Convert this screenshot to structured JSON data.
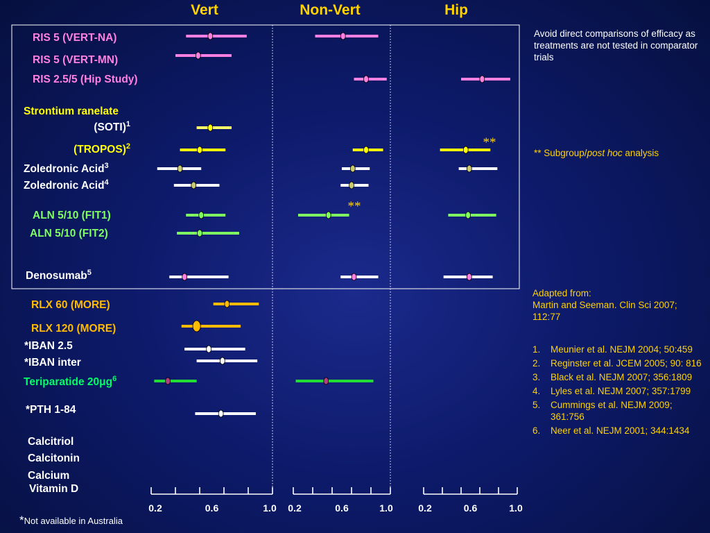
{
  "chart_data": {
    "type": "forest",
    "panels": [
      "Vert",
      "Non-Vert",
      "Hip"
    ],
    "x_ticks": [
      {
        "label": "0.2",
        "value": 0.2
      },
      {
        "label": "0.6",
        "value": 0.6
      },
      {
        "label": "1.0",
        "value": 1.0
      }
    ],
    "xlim": [
      0.2,
      1.0
    ],
    "rows": [
      {
        "label": "RIS 5 (VERT-NA)",
        "color": "#ff80e0",
        "bar": "#ff80e0",
        "dot": "#ff80e0",
        "values": [
          {
            "lo": 0.43,
            "pt": 0.59,
            "hi": 0.83
          },
          {
            "lo": 0.38,
            "pt": 0.61,
            "hi": 0.9
          },
          null
        ]
      },
      {
        "label": "RIS 5 (VERT-MN)",
        "color": "#ff80e0",
        "bar": "#ff80e0",
        "dot": "#ff80e0",
        "values": [
          {
            "lo": 0.36,
            "pt": 0.51,
            "hi": 0.73
          },
          null,
          null
        ]
      },
      {
        "label": "RIS 2.5/5 (Hip Study)",
        "color": "#ff80e0",
        "bar": "#ff80e0",
        "dot": "#ff80e0",
        "values": [
          null,
          {
            "lo": 0.7,
            "pt": 0.8,
            "hi": 0.97
          },
          {
            "lo": 0.52,
            "pt": 0.7,
            "hi": 0.94
          }
        ]
      },
      {
        "label": "Strontium ranelate",
        "color": "#ffff00",
        "header": true
      },
      {
        "label": "(SOTI)",
        "sup": "1",
        "color": "#ffffff",
        "bar": "#ffff66",
        "dot": "#ffff00",
        "values": [
          {
            "lo": 0.5,
            "pt": 0.59,
            "hi": 0.73
          },
          null,
          null
        ]
      },
      {
        "label": "(TROPOS)",
        "sup": "2",
        "color": "#ffff00",
        "bar": "#ffff00",
        "dot": "#ffff00",
        "values": [
          {
            "lo": 0.39,
            "pt": 0.52,
            "hi": 0.69
          },
          {
            "lo": 0.69,
            "pt": 0.8,
            "hi": 0.94
          },
          {
            "lo": 0.34,
            "pt": 0.56,
            "hi": 0.77
          }
        ],
        "note": "**"
      },
      {
        "label": "Zoledronic Acid",
        "sup": "3",
        "color": "#ffffff",
        "bar": "#ffffff",
        "dot": "#c8c870",
        "values": [
          {
            "lo": 0.24,
            "pt": 0.39,
            "hi": 0.53
          },
          {
            "lo": 0.6,
            "pt": 0.69,
            "hi": 0.83
          },
          {
            "lo": 0.5,
            "pt": 0.59,
            "hi": 0.83
          }
        ]
      },
      {
        "label": "Zoledronic Acid",
        "sup": "4",
        "color": "#ffffff",
        "bar": "#ffffff",
        "dot": "#c8c870",
        "values": [
          {
            "lo": 0.35,
            "pt": 0.48,
            "hi": 0.65
          },
          {
            "lo": 0.59,
            "pt": 0.68,
            "hi": 0.82
          },
          null
        ]
      },
      {
        "label": "ALN 5/10 (FIT1)",
        "color": "#80ff60",
        "bar": "#80ff60",
        "dot": "#80ff60",
        "values": [
          {
            "lo": 0.43,
            "pt": 0.53,
            "hi": 0.69
          },
          {
            "lo": 0.24,
            "pt": 0.49,
            "hi": 0.66
          },
          {
            "lo": 0.41,
            "pt": 0.58,
            "hi": 0.82
          }
        ],
        "note": "**"
      },
      {
        "label": "ALN 5/10 (FIT2)",
        "color": "#80ff60",
        "bar": "#80ff60",
        "dot": "#80ff60",
        "values": [
          {
            "lo": 0.37,
            "pt": 0.52,
            "hi": 0.78
          },
          null,
          null
        ]
      },
      {
        "label": "Denosumab",
        "sup": "5",
        "color": "#ffffff",
        "bar": "#ffffff",
        "dot": "#ff80e0",
        "normal": true,
        "values": [
          {
            "lo": 0.32,
            "pt": 0.42,
            "hi": 0.71
          },
          {
            "lo": 0.59,
            "pt": 0.7,
            "hi": 0.9
          },
          {
            "lo": 0.37,
            "pt": 0.59,
            "hi": 0.79
          }
        ]
      },
      {
        "label": "RLX 60 (MORE)",
        "color": "#ffbb00",
        "bar": "#ffbb00",
        "dot": "#ffbb00",
        "values": [
          {
            "lo": 0.61,
            "pt": 0.7,
            "hi": 0.91
          },
          null,
          null
        ]
      },
      {
        "label": "RLX 120 (MORE)",
        "color": "#ffbb00",
        "bar": "#ffbb00",
        "dot": "#ffbb00",
        "big": true,
        "values": [
          {
            "lo": 0.4,
            "pt": 0.5,
            "hi": 0.79
          },
          null,
          null
        ]
      },
      {
        "label": "*IBAN 2.5",
        "color": "#ffffff",
        "bar": "#ffffff",
        "dot": "#ffffff",
        "values": [
          {
            "lo": 0.42,
            "pt": 0.58,
            "hi": 0.82
          },
          null,
          null
        ]
      },
      {
        "label": "*IBAN inter",
        "color": "#ffffff",
        "bar": "#ffffff",
        "dot": "#ffffff",
        "values": [
          {
            "lo": 0.5,
            "pt": 0.67,
            "hi": 0.9
          },
          null,
          null
        ]
      },
      {
        "label": "Teriparatide 20μg",
        "sup": "6",
        "color": "#00ff66",
        "bar": "#22dd33",
        "dot": "#b04080",
        "values": [
          {
            "lo": 0.22,
            "pt": 0.31,
            "hi": 0.5
          },
          {
            "lo": 0.22,
            "pt": 0.47,
            "hi": 0.86
          },
          null
        ]
      },
      {
        "label": "*PTH 1-84",
        "color": "#ffffff",
        "bar": "#ffffff",
        "dot": "#ffffff",
        "normal": true,
        "values": [
          {
            "lo": 0.49,
            "pt": 0.66,
            "hi": 0.89
          },
          null,
          null
        ]
      },
      {
        "label": "Calcitriol",
        "color": "#ffffff",
        "values": [
          null,
          null,
          null
        ]
      },
      {
        "label": "Calcitonin",
        "color": "#ffffff",
        "values": [
          null,
          null,
          null
        ]
      },
      {
        "label": "Calcium",
        "color": "#ffffff",
        "values": [
          null,
          null,
          null
        ]
      },
      {
        "label": "Vitamin D",
        "color": "#ffffff",
        "values": [
          null,
          null,
          null
        ]
      }
    ]
  },
  "notes": {
    "top": "Avoid direct comparisons of efficacy as treatments are not tested in comparator trials",
    "subgroup_prefix": "** Subgroup/",
    "subgroup_italic": "post hoc",
    "subgroup_suffix": " analysis",
    "adapted_line1": "Adapted from:",
    "adapted_line2": "Martin  and Seeman. Clin Sci 2007; 112:77",
    "references": [
      {
        "num": "1.",
        "text": "Meunier et al. NEJM 2004; 50:459"
      },
      {
        "num": "2.",
        "text": "Reginster et al. JCEM 2005; 90: 816"
      },
      {
        "num": "3.",
        "text": "Black et al. NEJM 2007; 356:1809"
      },
      {
        "num": "4.",
        "text": "Lyles et al. NEJM 2007; 357:1799"
      },
      {
        "num": "5.",
        "text": "Cummings et al.  NEJM 2009; 361:756"
      },
      {
        "num": "6.",
        "text": "Neer et al. NEJM 2001; 344:1434"
      }
    ],
    "footnote_star": "*",
    "footnote": "Not available in Australia"
  }
}
